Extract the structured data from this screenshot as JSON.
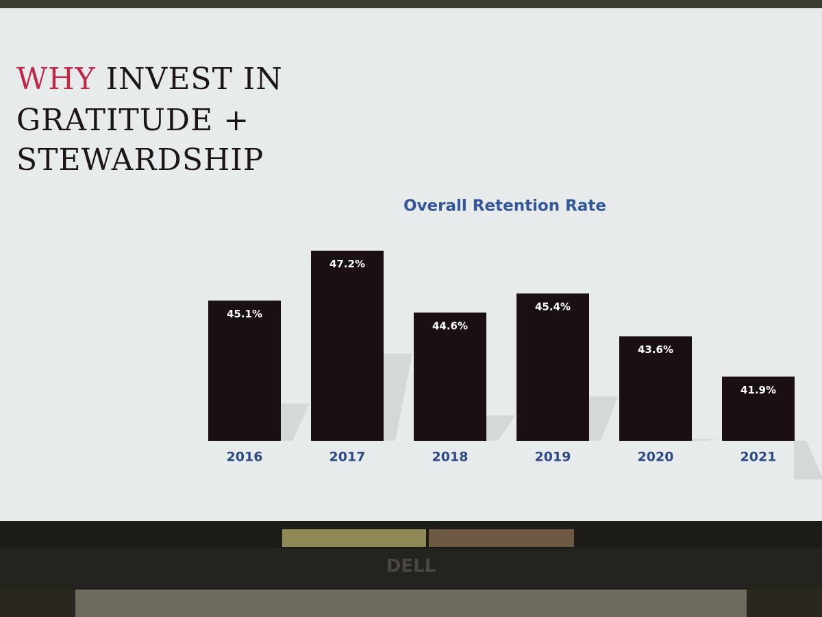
{
  "slide_title": {
    "accent": "WHY",
    "lines": [
      "INVEST IN",
      "GRATITUDE +",
      "STEWARDSHIP"
    ]
  },
  "chart_data": {
    "type": "bar",
    "title": "Overall Retention Rate",
    "categories": [
      "2016",
      "2017",
      "2018",
      "2019",
      "2020",
      "2021"
    ],
    "values": [
      45.1,
      47.2,
      44.6,
      45.4,
      43.6,
      41.9
    ],
    "value_labels": [
      "45.1%",
      "47.2%",
      "44.6%",
      "45.4%",
      "43.6%",
      "41.9%"
    ],
    "color": "#1a0f14",
    "ylim": [
      39.2,
      48
    ]
  }
}
